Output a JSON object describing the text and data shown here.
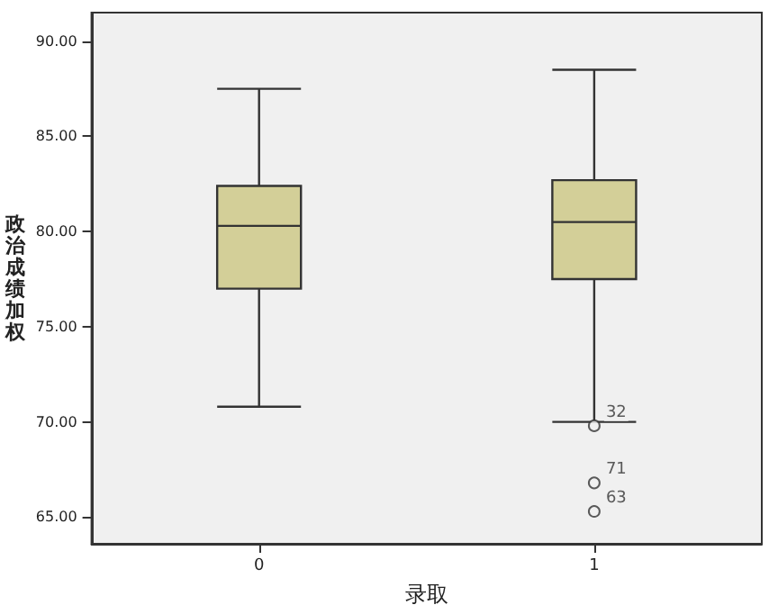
{
  "chart_data": {
    "type": "box",
    "xlabel": "录取",
    "ylabel": "政治成绩加权",
    "categories": [
      "0",
      "1"
    ],
    "boxes": [
      {
        "low": 70.8,
        "q1": 77.0,
        "median": 80.3,
        "q3": 82.4,
        "high": 87.5
      },
      {
        "low": 70.0,
        "q1": 77.5,
        "median": 80.5,
        "q3": 82.7,
        "high": 88.5,
        "outliers": [
          69.8,
          66.8,
          65.3
        ]
      }
    ],
    "color": "#d3cf98",
    "ylim": [
      63.6,
      91.5
    ],
    "yticks": [
      {
        "value": 65,
        "label": "65.00"
      },
      {
        "value": 70,
        "label": "70.00"
      },
      {
        "value": 75,
        "label": "75.00"
      },
      {
        "value": 80,
        "label": "80.00"
      },
      {
        "value": 85,
        "label": "85.00"
      },
      {
        "value": 90,
        "label": "90.00"
      }
    ],
    "annotations": [
      "32",
      "71",
      "63"
    ],
    "grid": false
  }
}
